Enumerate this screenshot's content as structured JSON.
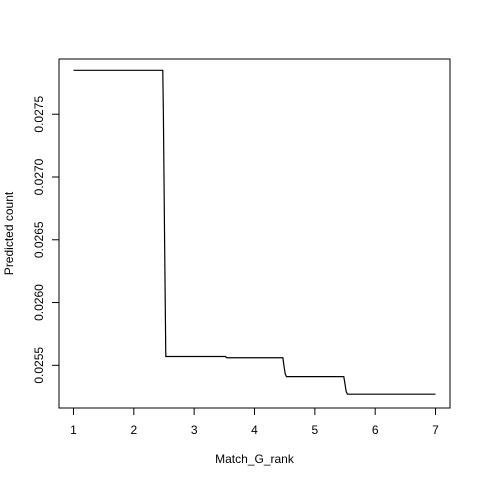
{
  "chart_data": {
    "type": "line",
    "title": "",
    "xlabel": "Match_G_rank",
    "ylabel": "Predicted count",
    "xlim": [
      0.76,
      7.24
    ],
    "ylim": [
      0.02516,
      0.02794
    ],
    "xticks": [
      1,
      2,
      3,
      4,
      5,
      6,
      7
    ],
    "xtick_labels": [
      "1",
      "2",
      "3",
      "4",
      "5",
      "6",
      "7"
    ],
    "yticks": [
      0.0255,
      0.026,
      0.0265,
      0.027,
      0.0275
    ],
    "ytick_labels": [
      "0.0255",
      "0.0260",
      "0.0265",
      "0.0270",
      "0.0275"
    ],
    "grid": false,
    "legend": "none",
    "line_color": "#000000",
    "series": [
      {
        "x": [
          1.0,
          2.48,
          2.49,
          2.51,
          2.53,
          3.52,
          3.54,
          4.47,
          4.49,
          4.51,
          4.53,
          5.48,
          5.5,
          5.52,
          5.54,
          7.0
        ],
        "y": [
          0.02785,
          0.02785,
          0.0275,
          0.0265,
          0.02557,
          0.02557,
          0.02556,
          0.02556,
          0.02549,
          0.02543,
          0.02541,
          0.02541,
          0.02535,
          0.02529,
          0.02527,
          0.02527
        ]
      }
    ]
  }
}
